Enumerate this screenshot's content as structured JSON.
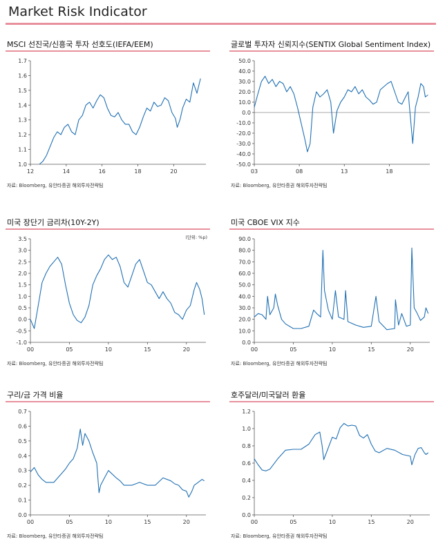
{
  "page": {
    "title": "Market Risk Indicator",
    "accent_color": "#e8909c",
    "line_color": "#1f6fb2"
  },
  "chart_data": [
    {
      "id": "msci",
      "type": "line",
      "title": "MSCI 선진국/신흥국  투자 선호도(IEFA/EEM)",
      "source": "자료: Bloomberg,  유안타증권 해외투자전략팀",
      "xlim": [
        2012,
        2021.8
      ],
      "ylim": [
        1.0,
        1.7
      ],
      "yticks": [
        1.0,
        1.1,
        1.2,
        1.3,
        1.4,
        1.5,
        1.6,
        1.7
      ],
      "ytick_labels": [
        "1.0",
        "1.1",
        "1.2",
        "1.3",
        "1.4",
        "1.5",
        "1.6",
        "1.7"
      ],
      "xticks": [
        2012,
        2014,
        2016,
        2018,
        2020
      ],
      "xtick_labels": [
        "12",
        "14",
        "16",
        "18",
        "20"
      ],
      "series": [
        {
          "name": "IEFA/EEM",
          "x": [
            2012.5,
            2012.7,
            2012.9,
            2013.1,
            2013.3,
            2013.5,
            2013.7,
            2013.9,
            2014.1,
            2014.3,
            2014.5,
            2014.7,
            2014.9,
            2015.1,
            2015.3,
            2015.5,
            2015.7,
            2015.9,
            2016.1,
            2016.3,
            2016.5,
            2016.7,
            2016.9,
            2017.1,
            2017.3,
            2017.5,
            2017.7,
            2017.9,
            2018.1,
            2018.3,
            2018.5,
            2018.7,
            2018.9,
            2019.1,
            2019.3,
            2019.5,
            2019.7,
            2019.9,
            2020.1,
            2020.2,
            2020.35,
            2020.5,
            2020.7,
            2020.9,
            2021.1,
            2021.3,
            2021.4,
            2021.5
          ],
          "values": [
            1.0,
            1.02,
            1.06,
            1.12,
            1.18,
            1.22,
            1.2,
            1.25,
            1.27,
            1.22,
            1.2,
            1.3,
            1.33,
            1.4,
            1.42,
            1.38,
            1.43,
            1.47,
            1.45,
            1.38,
            1.33,
            1.32,
            1.35,
            1.3,
            1.27,
            1.27,
            1.22,
            1.2,
            1.25,
            1.32,
            1.38,
            1.36,
            1.42,
            1.39,
            1.4,
            1.45,
            1.43,
            1.35,
            1.31,
            1.25,
            1.3,
            1.38,
            1.44,
            1.42,
            1.55,
            1.48,
            1.53,
            1.58
          ]
        }
      ]
    },
    {
      "id": "sentix",
      "type": "line",
      "title": "글로벌 투자자 신뢰지수(SENTIX  Global Sentiment Index)",
      "source": "자료: Bloomberg,  유안타증권 해외투자전략팀",
      "xlim": [
        2003,
        2022.5
      ],
      "ylim": [
        -50,
        50
      ],
      "yticks": [
        -50,
        -40,
        -30,
        -20,
        -10,
        0,
        10,
        20,
        30,
        40,
        50
      ],
      "ytick_labels": [
        "-50.0",
        "-40.0",
        "-30.0",
        "-20.0",
        "-10.0",
        "0.0",
        "10.0",
        "20.0",
        "30.0",
        "40.0",
        "50.0"
      ],
      "xticks": [
        2003,
        2008,
        2013,
        2018
      ],
      "xtick_labels": [
        "03",
        "08",
        "13",
        "18"
      ],
      "zero_line": true,
      "series": [
        {
          "name": "SENTIX",
          "x": [
            2003.0,
            2003.4,
            2003.8,
            2004.2,
            2004.6,
            2005.0,
            2005.4,
            2005.8,
            2006.2,
            2006.6,
            2007.0,
            2007.4,
            2007.8,
            2008.2,
            2008.6,
            2008.9,
            2009.2,
            2009.5,
            2009.9,
            2010.3,
            2010.7,
            2011.1,
            2011.5,
            2011.8,
            2012.2,
            2012.6,
            2013.0,
            2013.4,
            2013.8,
            2014.2,
            2014.6,
            2015.0,
            2015.4,
            2015.8,
            2016.2,
            2016.6,
            2017.0,
            2017.4,
            2017.8,
            2018.2,
            2018.6,
            2019.0,
            2019.4,
            2019.8,
            2020.1,
            2020.3,
            2020.6,
            2020.9,
            2021.2,
            2021.5,
            2021.8,
            2022.0,
            2022.3
          ],
          "values": [
            5,
            18,
            30,
            35,
            28,
            32,
            25,
            30,
            28,
            20,
            25,
            18,
            5,
            -10,
            -25,
            -38,
            -30,
            5,
            20,
            15,
            18,
            22,
            10,
            -20,
            2,
            10,
            15,
            22,
            20,
            25,
            18,
            22,
            15,
            12,
            8,
            10,
            22,
            25,
            28,
            30,
            20,
            10,
            8,
            15,
            20,
            0,
            -30,
            5,
            15,
            28,
            25,
            15,
            17
          ]
        }
      ]
    },
    {
      "id": "yield-spread",
      "type": "line",
      "title": "미국 장단기 금리차(10Y-2Y)",
      "source": "자료: Bloomberg,  유안타증권 해외투자전략팀",
      "unit": "(단위: %p)",
      "xlim": [
        2000,
        2022.5
      ],
      "ylim": [
        -1.0,
        3.5
      ],
      "yticks": [
        -1.0,
        -0.5,
        0.0,
        0.5,
        1.0,
        1.5,
        2.0,
        2.5,
        3.0,
        3.5
      ],
      "ytick_labels": [
        "-1.0",
        "-0.5",
        "0.0",
        "0.5",
        "1.0",
        "1.5",
        "2.0",
        "2.5",
        "3.0",
        "3.5"
      ],
      "xticks": [
        2000,
        2005,
        2010,
        2015,
        2020
      ],
      "xtick_labels": [
        "00",
        "05",
        "10",
        "15",
        "20"
      ],
      "series": [
        {
          "name": "10Y-2Y",
          "x": [
            2000.0,
            2000.5,
            2001.0,
            2001.5,
            2002.0,
            2002.5,
            2003.0,
            2003.5,
            2004.0,
            2004.5,
            2005.0,
            2005.5,
            2006.0,
            2006.5,
            2007.0,
            2007.5,
            2008.0,
            2008.5,
            2009.0,
            2009.5,
            2010.0,
            2010.5,
            2011.0,
            2011.5,
            2012.0,
            2012.5,
            2013.0,
            2013.5,
            2014.0,
            2014.5,
            2015.0,
            2015.5,
            2016.0,
            2016.5,
            2017.0,
            2017.5,
            2018.0,
            2018.5,
            2019.0,
            2019.5,
            2020.0,
            2020.5,
            2021.0,
            2021.3,
            2021.7,
            2022.0,
            2022.3
          ],
          "values": [
            0.0,
            -0.4,
            0.6,
            1.6,
            2.0,
            2.3,
            2.5,
            2.7,
            2.4,
            1.5,
            0.7,
            0.2,
            -0.05,
            -0.15,
            0.1,
            0.6,
            1.5,
            1.9,
            2.2,
            2.6,
            2.8,
            2.6,
            2.7,
            2.3,
            1.6,
            1.4,
            1.9,
            2.4,
            2.6,
            2.1,
            1.6,
            1.5,
            1.2,
            0.9,
            1.2,
            0.9,
            0.7,
            0.3,
            0.2,
            0.0,
            0.4,
            0.6,
            1.3,
            1.6,
            1.3,
            0.9,
            0.2
          ]
        }
      ]
    },
    {
      "id": "vix",
      "type": "line",
      "title": "미국 CBOE VIX  지수",
      "source": "자료: Bloomberg,  유안타증권 해외투자전략팀",
      "xlim": [
        2000,
        2022.5
      ],
      "ylim": [
        0,
        90
      ],
      "yticks": [
        0,
        10,
        20,
        30,
        40,
        50,
        60,
        70,
        80,
        90
      ],
      "ytick_labels": [
        "0.0",
        "10.0",
        "20.0",
        "30.0",
        "40.0",
        "50.0",
        "60.0",
        "70.0",
        "80.0",
        "90.0"
      ],
      "xticks": [
        2000,
        2005,
        2010,
        2015,
        2020
      ],
      "xtick_labels": [
        "00",
        "05",
        "10",
        "15",
        "20"
      ],
      "series": [
        {
          "name": "VIX",
          "x": [
            2000.0,
            2000.5,
            2001.0,
            2001.5,
            2001.7,
            2002.0,
            2002.5,
            2002.7,
            2003.0,
            2003.5,
            2004.0,
            2005.0,
            2006.0,
            2007.0,
            2007.6,
            2008.0,
            2008.5,
            2008.8,
            2009.0,
            2009.5,
            2010.0,
            2010.4,
            2010.8,
            2011.5,
            2011.7,
            2012.0,
            2013.0,
            2014.0,
            2015.0,
            2015.6,
            2016.0,
            2017.0,
            2018.0,
            2018.1,
            2018.5,
            2018.9,
            2019.5,
            2020.0,
            2020.2,
            2020.5,
            2020.9,
            2021.3,
            2021.8,
            2022.0,
            2022.3
          ],
          "values": [
            22,
            25,
            24,
            20,
            40,
            24,
            30,
            42,
            32,
            20,
            16,
            12,
            12,
            14,
            28,
            25,
            22,
            80,
            45,
            28,
            20,
            45,
            22,
            20,
            45,
            18,
            15,
            13,
            14,
            40,
            18,
            11,
            12,
            37,
            15,
            25,
            14,
            15,
            82,
            30,
            25,
            19,
            22,
            30,
            25
          ]
        }
      ]
    },
    {
      "id": "copper-gold",
      "type": "line",
      "title": "구리/금  가격  비율",
      "source": "자료: Bloomberg,  유안타증권 해외투자전략팀",
      "xlim": [
        2000,
        2022.5
      ],
      "ylim": [
        0.0,
        0.7
      ],
      "yticks": [
        0.0,
        0.1,
        0.2,
        0.3,
        0.4,
        0.5,
        0.6,
        0.7
      ],
      "ytick_labels": [
        "0.0",
        "0.1",
        "0.2",
        "0.3",
        "0.4",
        "0.5",
        "0.6",
        "0.7"
      ],
      "xticks": [
        2000,
        2005,
        2010,
        2015,
        2020
      ],
      "xtick_labels": [
        "00",
        "05",
        "10",
        "15",
        "20"
      ],
      "series": [
        {
          "name": "Copper/Gold",
          "x": [
            2000.0,
            2000.5,
            2001.0,
            2001.5,
            2002.0,
            2003.0,
            2004.0,
            2004.5,
            2005.0,
            2005.5,
            2006.0,
            2006.4,
            2006.7,
            2007.0,
            2007.5,
            2008.0,
            2008.5,
            2008.8,
            2009.0,
            2009.5,
            2010.0,
            2011.0,
            2011.5,
            2012.0,
            2013.0,
            2014.0,
            2015.0,
            2016.0,
            2017.0,
            2018.0,
            2018.5,
            2019.0,
            2019.5,
            2020.0,
            2020.3,
            2020.7,
            2021.0,
            2021.5,
            2022.0,
            2022.3
          ],
          "values": [
            0.29,
            0.32,
            0.27,
            0.24,
            0.22,
            0.22,
            0.28,
            0.31,
            0.35,
            0.38,
            0.45,
            0.58,
            0.47,
            0.55,
            0.5,
            0.42,
            0.35,
            0.15,
            0.2,
            0.25,
            0.3,
            0.25,
            0.23,
            0.2,
            0.2,
            0.22,
            0.2,
            0.2,
            0.25,
            0.23,
            0.21,
            0.2,
            0.17,
            0.16,
            0.12,
            0.16,
            0.2,
            0.22,
            0.24,
            0.23
          ]
        }
      ]
    },
    {
      "id": "aud-usd",
      "type": "line",
      "title": "호주달러/미국달러  환율",
      "source": "자료: Bloomberg,  유안타증권 해외투자전략팀",
      "xlim": [
        2000,
        2022.5
      ],
      "ylim": [
        0.0,
        1.2
      ],
      "yticks": [
        0.0,
        0.2,
        0.4,
        0.6,
        0.8,
        1.0,
        1.2
      ],
      "ytick_labels": [
        "0.0",
        "0.2",
        "0.4",
        "0.6",
        "0.8",
        "1.0",
        "1.2"
      ],
      "xticks": [
        2000,
        2005,
        2010,
        2015,
        2020
      ],
      "xtick_labels": [
        "00",
        "05",
        "10",
        "15",
        "20"
      ],
      "series": [
        {
          "name": "AUD/USD",
          "x": [
            2000.0,
            2000.5,
            2001.0,
            2001.5,
            2002.0,
            2003.0,
            2004.0,
            2005.0,
            2006.0,
            2007.0,
            2007.8,
            2008.4,
            2008.7,
            2008.9,
            2009.5,
            2010.0,
            2010.5,
            2011.0,
            2011.5,
            2012.0,
            2012.5,
            2013.0,
            2013.5,
            2014.0,
            2014.5,
            2015.0,
            2015.5,
            2016.0,
            2017.0,
            2018.0,
            2019.0,
            2020.0,
            2020.2,
            2020.6,
            2021.0,
            2021.4,
            2021.8,
            2022.0,
            2022.3
          ],
          "values": [
            0.65,
            0.58,
            0.52,
            0.51,
            0.53,
            0.65,
            0.75,
            0.76,
            0.76,
            0.82,
            0.93,
            0.96,
            0.8,
            0.64,
            0.78,
            0.9,
            0.88,
            1.01,
            1.06,
            1.03,
            1.04,
            1.03,
            0.92,
            0.89,
            0.93,
            0.82,
            0.74,
            0.72,
            0.77,
            0.75,
            0.7,
            0.68,
            0.58,
            0.7,
            0.77,
            0.78,
            0.72,
            0.7,
            0.72
          ]
        }
      ]
    }
  ]
}
